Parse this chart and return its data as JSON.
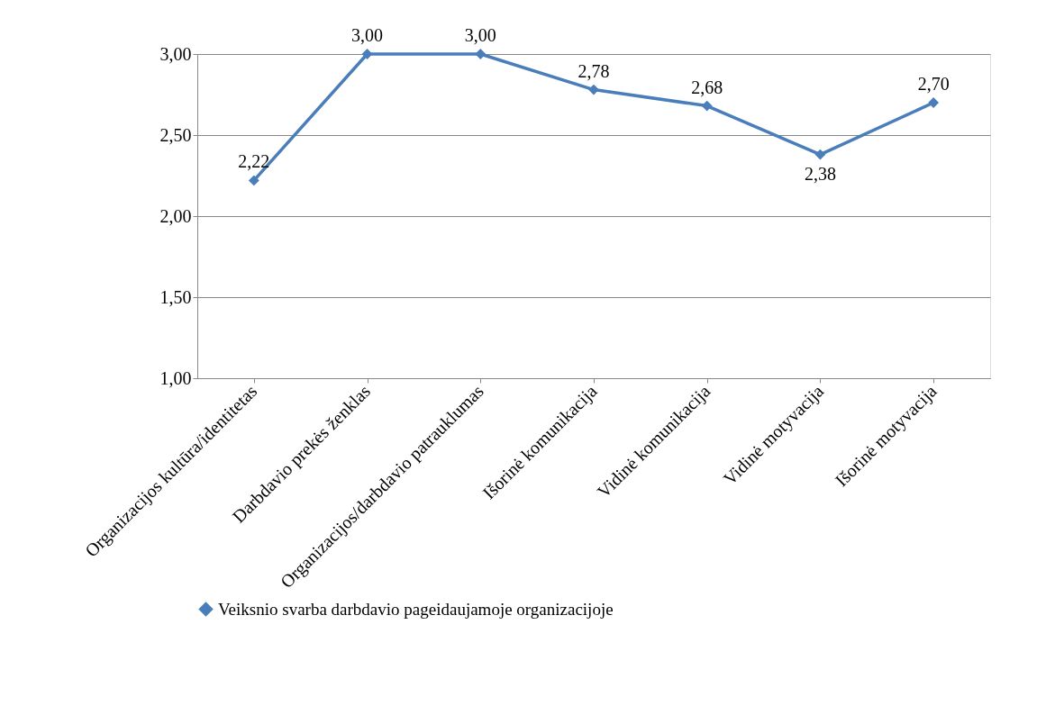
{
  "chart_data": {
    "type": "line",
    "categories": [
      "Organizacijos kultūra/identitetas",
      "Darbdavio prekės ženklas",
      "Organizacijos/darbdavio patrauklumas",
      "Išorinė komunikacija",
      "Vidinė komunikacija",
      "Vidinė motyvacija",
      "Išorinė motyvacija"
    ],
    "series": [
      {
        "name": "Veiksnio svarba darbdavio pageidaujamoje organizacijoje",
        "color": "#4a7ebb",
        "values": [
          2.22,
          3.0,
          3.0,
          2.78,
          2.68,
          2.38,
          2.7
        ],
        "value_labels": [
          "2,22",
          "3,00",
          "3,00",
          "2,78",
          "2,68",
          "2,38",
          "2,70"
        ]
      }
    ],
    "ylim": [
      1,
      3
    ],
    "yticks": [
      {
        "value": 1,
        "label": "1,00"
      },
      {
        "value": 1.5,
        "label": "1,50"
      },
      {
        "value": 2,
        "label": "2,00"
      },
      {
        "value": 2.5,
        "label": "2,50"
      },
      {
        "value": 3,
        "label": "3,00"
      }
    ],
    "grid": "y",
    "legend": "bottom",
    "marker": "diamond",
    "line_style": "solid"
  }
}
